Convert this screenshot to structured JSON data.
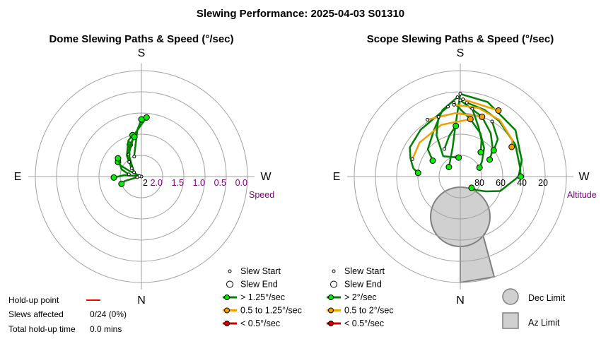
{
  "title": "Slewing Performance: 2025-04-03 S01310",
  "chart_data": [
    {
      "type": "polar-paths",
      "title": "Dome Slewing Paths & Speed (°/sec)",
      "directions": {
        "top": "S",
        "left": "E",
        "right": "W",
        "bottom": "N"
      },
      "radial_label": "Speed",
      "radial_ticks": [
        "2.0",
        "1.5",
        "1.0",
        "0.5",
        "0.0"
      ],
      "radial_max": 2.5,
      "first_tick_partial": "2",
      "legend": [
        {
          "label": "Slew Start",
          "kind": "start"
        },
        {
          "label": "Slew End",
          "kind": "end"
        },
        {
          "label": "> 1.25°/sec",
          "kind": "line",
          "color": "#008000",
          "dot": "#00ee00"
        },
        {
          "label": "0.5 to 1.25°/sec",
          "kind": "line",
          "color": "#f0a000",
          "dot": "#f0a000"
        },
        {
          "label": "< 0.5°/sec",
          "kind": "line",
          "color": "#d00000",
          "dot": "#d00000"
        }
      ],
      "paths": [
        {
          "pts": [
            [
              110,
              2.5
            ],
            [
              115,
              2.2
            ],
            [
              118,
              1.95
            ],
            [
              122,
              1.85
            ]
          ],
          "speed": "fast"
        },
        {
          "pts": [
            [
              105,
              2.45
            ],
            [
              95,
              2.1
            ],
            [
              90,
              1.95
            ],
            [
              88,
              1.85
            ]
          ],
          "speed": "fast"
        },
        {
          "pts": [
            [
              120,
              2.3
            ],
            [
              140,
              2.15
            ],
            [
              150,
              1.9
            ],
            [
              160,
              1.7
            ]
          ],
          "speed": "fast"
        },
        {
          "pts": [
            [
              130,
              2.2
            ],
            [
              145,
              1.9
            ],
            [
              160,
              1.6
            ],
            [
              168,
              1.5
            ]
          ],
          "speed": "fast"
        },
        {
          "pts": [
            [
              80,
              2.4
            ],
            [
              75,
              2.1
            ],
            [
              70,
              2.0
            ]
          ],
          "speed": "fast"
        },
        {
          "pts": [
            [
              160,
              2.0
            ],
            [
              175,
              1.4
            ],
            [
              180,
              1.15
            ]
          ],
          "speed": "fast"
        },
        {
          "pts": [
            [
              150,
              1.9
            ],
            [
              170,
              1.5
            ],
            [
              185,
              1.1
            ]
          ],
          "speed": "fast"
        },
        {
          "pts": [
            [
              140,
              2.05
            ],
            [
              160,
              1.7
            ],
            [
              170,
              1.55
            ]
          ],
          "speed": "fast"
        },
        {
          "pts": [
            [
              100,
              2.2
            ],
            [
              110,
              2.0
            ],
            [
              128,
              1.8
            ]
          ],
          "speed": "fast"
        }
      ],
      "hold_up": {
        "point_label": "Hold-up point",
        "slews_label": "Slews affected",
        "slews_value": "0/24 (0%)",
        "time_label": "Total hold-up time",
        "time_value": "0.0 mins",
        "line_color": "#ff0000"
      }
    },
    {
      "type": "polar-paths",
      "title": "Scope Slewing Paths & Speed (°/sec)",
      "directions": {
        "top": "S",
        "left": "E",
        "right": "W",
        "bottom": "N"
      },
      "radial_label": "Altitude",
      "radial_ticks": [
        "80",
        "60",
        "40",
        "20"
      ],
      "radial_max": 90,
      "legend": [
        {
          "label": "Slew Start",
          "kind": "start"
        },
        {
          "label": "Slew End",
          "kind": "end"
        },
        {
          "label": "> 2°/sec",
          "kind": "line",
          "color": "#008000",
          "dot": "#00ee00"
        },
        {
          "label": "0.5 to 2°/sec",
          "kind": "line",
          "color": "#f0a000",
          "dot": "#f0a000"
        },
        {
          "label": "< 0.5°/sec",
          "kind": "line",
          "color": "#d00000",
          "dot": "#d00000"
        }
      ],
      "limits": [
        {
          "label": "Dec Limit",
          "kind": "circle"
        },
        {
          "label": "Az Limit",
          "kind": "square"
        }
      ],
      "paths": [
        {
          "pts": [
            [
              180,
              22
            ],
            [
              175,
              50
            ],
            [
              165,
              72
            ],
            [
              130,
              86
            ]
          ],
          "speed": "fast"
        },
        {
          "pts": [
            [
              180,
              22
            ],
            [
              200,
              25
            ],
            [
              230,
              32
            ],
            [
              255,
              40
            ],
            [
              270,
              45
            ],
            [
              290,
              60
            ],
            [
              300,
              72
            ],
            [
              310,
              80
            ],
            [
              315,
              85
            ]
          ],
          "speed": "fast"
        },
        {
          "pts": [
            [
              178,
              25
            ],
            [
              165,
              35
            ],
            [
              150,
              50
            ],
            [
              130,
              60
            ],
            [
              120,
              70
            ]
          ],
          "speed": "fast"
        },
        {
          "pts": [
            [
              180,
              28
            ],
            [
              200,
              40
            ],
            [
              215,
              50
            ],
            [
              230,
              60
            ],
            [
              240,
              68
            ]
          ],
          "speed": "fast"
        },
        {
          "pts": [
            [
              175,
              30
            ],
            [
              190,
              45
            ],
            [
              205,
              55
            ],
            [
              220,
              65
            ],
            [
              235,
              75
            ],
            [
              245,
              80
            ]
          ],
          "speed": "fast"
        },
        {
          "pts": [
            [
              170,
              33
            ],
            [
              155,
              40
            ],
            [
              140,
              42
            ],
            [
              120,
              45
            ],
            [
              110,
              50
            ],
            [
              100,
              55
            ],
            [
              95,
              60
            ]
          ],
          "speed": "fast"
        },
        {
          "pts": [
            [
              185,
              30
            ],
            [
              200,
              33
            ],
            [
              215,
              36
            ],
            [
              240,
              40
            ],
            [
              262,
              43
            ],
            [
              270,
              43
            ]
          ],
          "speed": "fast"
        },
        {
          "pts": [
            [
              150,
              38
            ],
            [
              175,
              40
            ],
            [
              200,
              40
            ]
          ],
          "speed": "medium"
        },
        {
          "pts": [
            [
              110,
              52
            ],
            [
              130,
              50
            ],
            [
              160,
              48
            ],
            [
              190,
              45
            ]
          ],
          "speed": "medium"
        },
        {
          "pts": [
            [
              175,
              32
            ],
            [
              195,
              33
            ],
            [
              215,
              35
            ],
            [
              235,
              40
            ],
            [
              240,
              44
            ]
          ],
          "speed": "medium"
        },
        {
          "pts": [
            [
              150,
              70
            ],
            [
              165,
              60
            ],
            [
              175,
              52
            ]
          ],
          "speed": "fast"
        },
        {
          "pts": [
            [
              210,
              40
            ],
            [
              225,
              50
            ],
            [
              232,
              60
            ]
          ],
          "speed": "fast"
        },
        {
          "pts": [
            [
              190,
              35
            ],
            [
              200,
              50
            ],
            [
              210,
              60
            ],
            [
              220,
              70
            ]
          ],
          "speed": "fast"
        },
        {
          "pts": [
            [
              160,
              40
            ],
            [
              150,
              55
            ],
            [
              140,
              75
            ],
            [
              175,
              82
            ]
          ],
          "speed": "fast"
        },
        {
          "pts": [
            [
              182,
              27
            ],
            [
              210,
              28
            ]
          ],
          "speed": "medium"
        }
      ]
    }
  ]
}
